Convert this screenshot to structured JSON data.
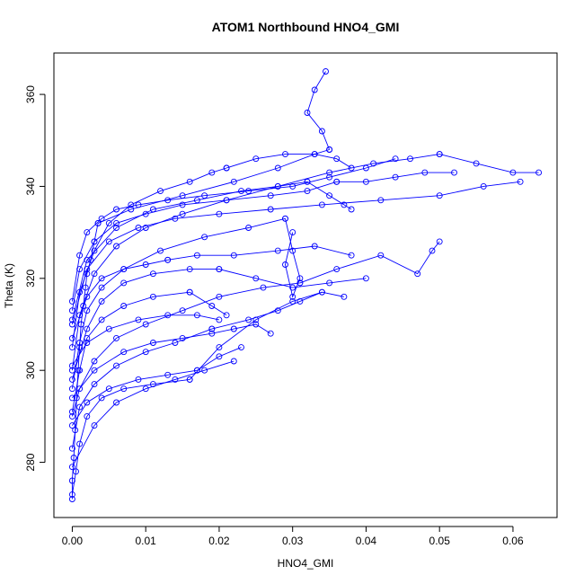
{
  "chart_data": {
    "type": "line",
    "title": "ATOM1 Northbound HNO4_GMI",
    "xlabel": "HNO4_GMI",
    "ylabel": "Theta (K)",
    "xlim": [
      -0.0025,
      0.066
    ],
    "ylim": [
      268,
      369
    ],
    "xticks": [
      0.0,
      0.01,
      0.02,
      0.03,
      0.04,
      0.05,
      0.06
    ],
    "xtick_labels": [
      "0.00",
      "0.01",
      "0.02",
      "0.03",
      "0.04",
      "0.05",
      "0.06"
    ],
    "yticks": [
      280,
      300,
      320,
      340,
      360
    ],
    "ytick_labels": [
      "280",
      "300",
      "320",
      "340",
      "360"
    ],
    "grid": false,
    "line_color": "#0000ff",
    "marker": "open-circle",
    "series": [
      {
        "x": [
          0.0,
          0.0,
          0.0002,
          0.0004,
          0.0006,
          0.0008,
          0.001,
          0.0012,
          0.0015,
          0.0018,
          0.002,
          0.0025,
          0.003,
          0.0035
        ],
        "y": [
          272,
          276,
          281,
          287,
          294,
          300,
          305,
          310,
          314,
          318,
          321,
          324,
          328,
          332
        ]
      },
      {
        "x": [
          0.0035,
          0.008,
          0.015,
          0.022,
          0.028,
          0.033,
          0.035
        ],
        "y": [
          332,
          335,
          338,
          341,
          344,
          347,
          348
        ]
      },
      {
        "x": [
          0.035,
          0.034,
          0.032,
          0.033,
          0.0345
        ],
        "y": [
          348,
          352,
          356,
          361,
          365
        ]
      },
      {
        "x": [
          0.0,
          0.0005,
          0.001,
          0.002,
          0.004,
          0.007,
          0.011,
          0.016
        ],
        "y": [
          273,
          278,
          284,
          290,
          294,
          296,
          297,
          298
        ]
      },
      {
        "x": [
          0.016,
          0.02,
          0.025,
          0.03,
          0.034,
          0.037
        ],
        "y": [
          298,
          305,
          311,
          315,
          317,
          316
        ]
      },
      {
        "x": [
          0.0,
          0.001,
          0.003,
          0.006,
          0.01,
          0.015,
          0.02,
          0.026,
          0.031
        ],
        "y": [
          290,
          296,
          302,
          307,
          310,
          313,
          316,
          318,
          319
        ]
      },
      {
        "x": [
          0.031,
          0.036,
          0.042,
          0.047,
          0.049,
          0.05
        ],
        "y": [
          319,
          322,
          325,
          321,
          326,
          328
        ]
      },
      {
        "x": [
          0.0,
          0.001,
          0.003,
          0.006,
          0.01,
          0.015,
          0.021,
          0.028,
          0.035,
          0.041,
          0.046,
          0.05
        ],
        "y": [
          300,
          312,
          321,
          327,
          331,
          334,
          337,
          340,
          343,
          345,
          346,
          347
        ]
      },
      {
        "x": [
          0.05,
          0.055,
          0.06,
          0.0635
        ],
        "y": [
          347,
          345,
          343,
          343
        ]
      },
      {
        "x": [
          0.0,
          0.002,
          0.005,
          0.009,
          0.014,
          0.02,
          0.027,
          0.034,
          0.042,
          0.05,
          0.056,
          0.061
        ],
        "y": [
          310,
          322,
          328,
          331,
          333,
          334,
          335,
          336,
          337,
          338,
          340,
          341
        ]
      },
      {
        "x": [
          0.0,
          0.001,
          0.002,
          0.004,
          0.007,
          0.012,
          0.018,
          0.024,
          0.029
        ],
        "y": [
          296,
          306,
          313,
          318,
          322,
          326,
          329,
          331,
          333
        ]
      },
      {
        "x": [
          0.029,
          0.03,
          0.031,
          0.03,
          0.029,
          0.03
        ],
        "y": [
          333,
          326,
          320,
          316,
          323,
          330
        ]
      },
      {
        "x": [
          0.0,
          0.001,
          0.003,
          0.006,
          0.01,
          0.014,
          0.019
        ],
        "y": [
          283,
          292,
          297,
          301,
          304,
          306,
          309
        ]
      },
      {
        "x": [
          0.019,
          0.024,
          0.028,
          0.031,
          0.034
        ],
        "y": [
          309,
          311,
          313,
          315,
          317
        ]
      },
      {
        "x": [
          0.0,
          0.002,
          0.005,
          0.009,
          0.013,
          0.017
        ],
        "y": [
          288,
          293,
          296,
          298,
          299,
          300
        ]
      },
      {
        "x": [
          0.017,
          0.02,
          0.023
        ],
        "y": [
          300,
          303,
          305
        ]
      },
      {
        "x": [
          0.0,
          0.001,
          0.003,
          0.005,
          0.008,
          0.012,
          0.016,
          0.019,
          0.021
        ],
        "y": [
          305,
          317,
          326,
          332,
          336,
          339,
          341,
          343,
          344
        ]
      },
      {
        "x": [
          0.021,
          0.025,
          0.029,
          0.033,
          0.036,
          0.038
        ],
        "y": [
          344,
          346,
          347,
          347,
          346,
          344
        ]
      },
      {
        "x": [
          0.0,
          0.002,
          0.004,
          0.007,
          0.01,
          0.013
        ],
        "y": [
          307,
          316,
          320,
          322,
          323,
          324
        ]
      },
      {
        "x": [
          0.013,
          0.017,
          0.022,
          0.028,
          0.033,
          0.038
        ],
        "y": [
          324,
          325,
          325,
          326,
          327,
          325
        ]
      },
      {
        "x": [
          0.0,
          0.003,
          0.006,
          0.01,
          0.014,
          0.018,
          0.022
        ],
        "y": [
          279,
          288,
          293,
          296,
          298,
          300,
          302
        ]
      },
      {
        "x": [
          0.0,
          0.002,
          0.004,
          0.007,
          0.011,
          0.016,
          0.02
        ],
        "y": [
          298,
          309,
          315,
          319,
          321,
          322,
          322
        ]
      },
      {
        "x": [
          0.02,
          0.025,
          0.03,
          0.035,
          0.04
        ],
        "y": [
          322,
          320,
          318,
          319,
          320
        ]
      },
      {
        "x": [
          0.0,
          0.001,
          0.002,
          0.004,
          0.006,
          0.009,
          0.013,
          0.018,
          0.024,
          0.03,
          0.035,
          0.04,
          0.044
        ],
        "y": [
          315,
          325,
          330,
          333,
          335,
          336,
          337,
          338,
          339,
          340,
          342,
          344,
          346
        ]
      },
      {
        "x": [
          0.0,
          0.002,
          0.005,
          0.009,
          0.013,
          0.017,
          0.02
        ],
        "y": [
          301,
          306,
          309,
          311,
          312,
          312,
          311
        ]
      },
      {
        "x": [
          0.0,
          0.001,
          0.003,
          0.006,
          0.01,
          0.015,
          0.021,
          0.027,
          0.032,
          0.036
        ],
        "y": [
          313,
          322,
          328,
          332,
          334,
          336,
          337,
          338,
          339,
          341
        ]
      },
      {
        "x": [
          0.036,
          0.04,
          0.044,
          0.048,
          0.052
        ],
        "y": [
          341,
          341,
          342,
          343,
          343
        ]
      },
      {
        "x": [
          0.0,
          0.001,
          0.002,
          0.004,
          0.007,
          0.011,
          0.016
        ],
        "y": [
          291,
          300,
          307,
          311,
          314,
          316,
          317
        ]
      },
      {
        "x": [
          0.016,
          0.019,
          0.021
        ],
        "y": [
          317,
          314,
          312
        ]
      },
      {
        "x": [
          0.0,
          0.003,
          0.007,
          0.011,
          0.015,
          0.019,
          0.022
        ],
        "y": [
          294,
          300,
          304,
          306,
          307,
          308,
          309
        ]
      },
      {
        "x": [
          0.022,
          0.025,
          0.027
        ],
        "y": [
          309,
          310,
          308
        ]
      },
      {
        "x": [
          0.0,
          0.002,
          0.006,
          0.011,
          0.017,
          0.023,
          0.028,
          0.032
        ],
        "y": [
          311,
          324,
          331,
          335,
          337,
          339,
          340,
          341
        ]
      },
      {
        "x": [
          0.032,
          0.035,
          0.037,
          0.038
        ],
        "y": [
          341,
          338,
          336,
          335
        ]
      }
    ]
  }
}
